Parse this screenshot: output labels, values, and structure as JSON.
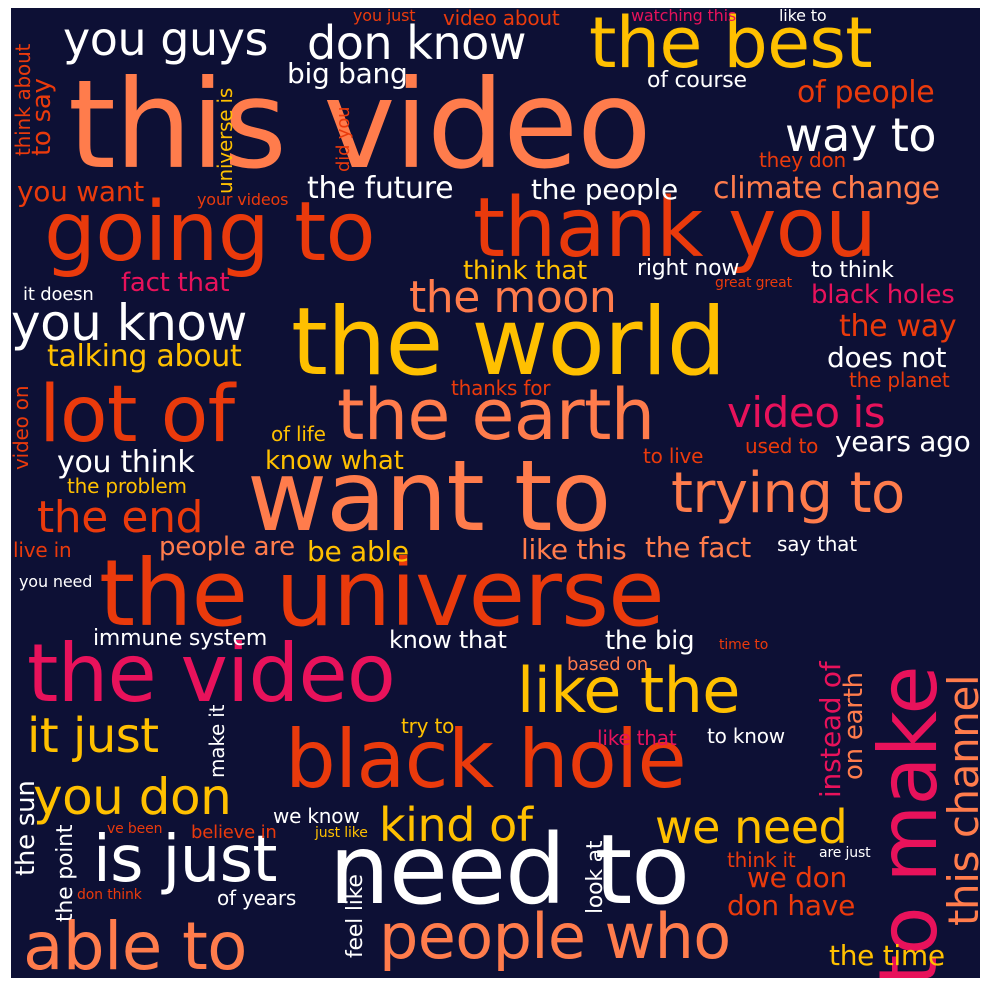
{
  "palette": {
    "background": "#0d1035",
    "white": "#ffffff",
    "salmon": "#ff7c4c",
    "red_orange": "#ea3a0c",
    "yellow": "#ffc000",
    "magenta": "#e8125b"
  },
  "words": {
    "w1": "this video",
    "w2": "going to",
    "w3": "thank you",
    "w4": "the world",
    "w5": "want to",
    "w6": "the universe",
    "w7": "the video",
    "w8": "need to",
    "w9": "black hole",
    "w10": "the best",
    "w11": "the earth",
    "w12": "lot of",
    "w13": "to make",
    "w14": "people who",
    "w15": "able to",
    "w16": "is just",
    "w17": "like the",
    "w18": "trying to",
    "w19": "you know",
    "w20": "don know",
    "w21": "you guys",
    "w22": "way to",
    "w23": "the moon",
    "w24": "this channel",
    "w25": "kind of",
    "w26": "we need",
    "w27": "you don",
    "w28": "it just",
    "w29": "video is",
    "w30": "the end",
    "w31": "climate change",
    "w32": "the future",
    "w33": "the people",
    "w34": "talking about",
    "w35": "you think",
    "w36": "the way",
    "w37": "does not",
    "w38": "black holes",
    "w39": "years ago",
    "w40": "of people",
    "w41": "big bang",
    "w42": "instead of",
    "w43": "on earth",
    "w44": "the time",
    "w45": "don have",
    "w46": "we don",
    "w47": "you want",
    "w48": "fact that",
    "w49": "think that",
    "w50": "like this",
    "w51": "the fact",
    "w52": "be able",
    "w53": "people are",
    "w54": "know what",
    "w55": "immune system",
    "w56": "know that",
    "w57": "the big",
    "w58": "of course",
    "w59": "right now",
    "w60": "to think",
    "w61": "it doesn",
    "w62": "the planet",
    "w63": "thanks for",
    "w64": "of life",
    "w65": "used to",
    "w66": "to live",
    "w67": "the problem",
    "w68": "live in",
    "w69": "say that",
    "w70": "you need",
    "w71": "based on",
    "w72": "time to",
    "w73": "try to",
    "w74": "like that",
    "w75": "to know",
    "w76": "we know",
    "w77": "believe in",
    "w78": "just like",
    "w79": "ve been",
    "w80": "think it",
    "w81": "are just",
    "w82": "of years",
    "w83": "don think",
    "w84": "the point",
    "w85": "the sun",
    "w86": "make it",
    "w87": "look at",
    "w88": "feel like",
    "w89": "universe is",
    "w90": "did you",
    "w91": "think about",
    "w92": "to say",
    "w93": "video on",
    "w94": "you just",
    "w95": "video about",
    "w96": "watching this",
    "w97": "like to",
    "w98": "they don",
    "w99": "your videos",
    "w100": "great great"
  }
}
